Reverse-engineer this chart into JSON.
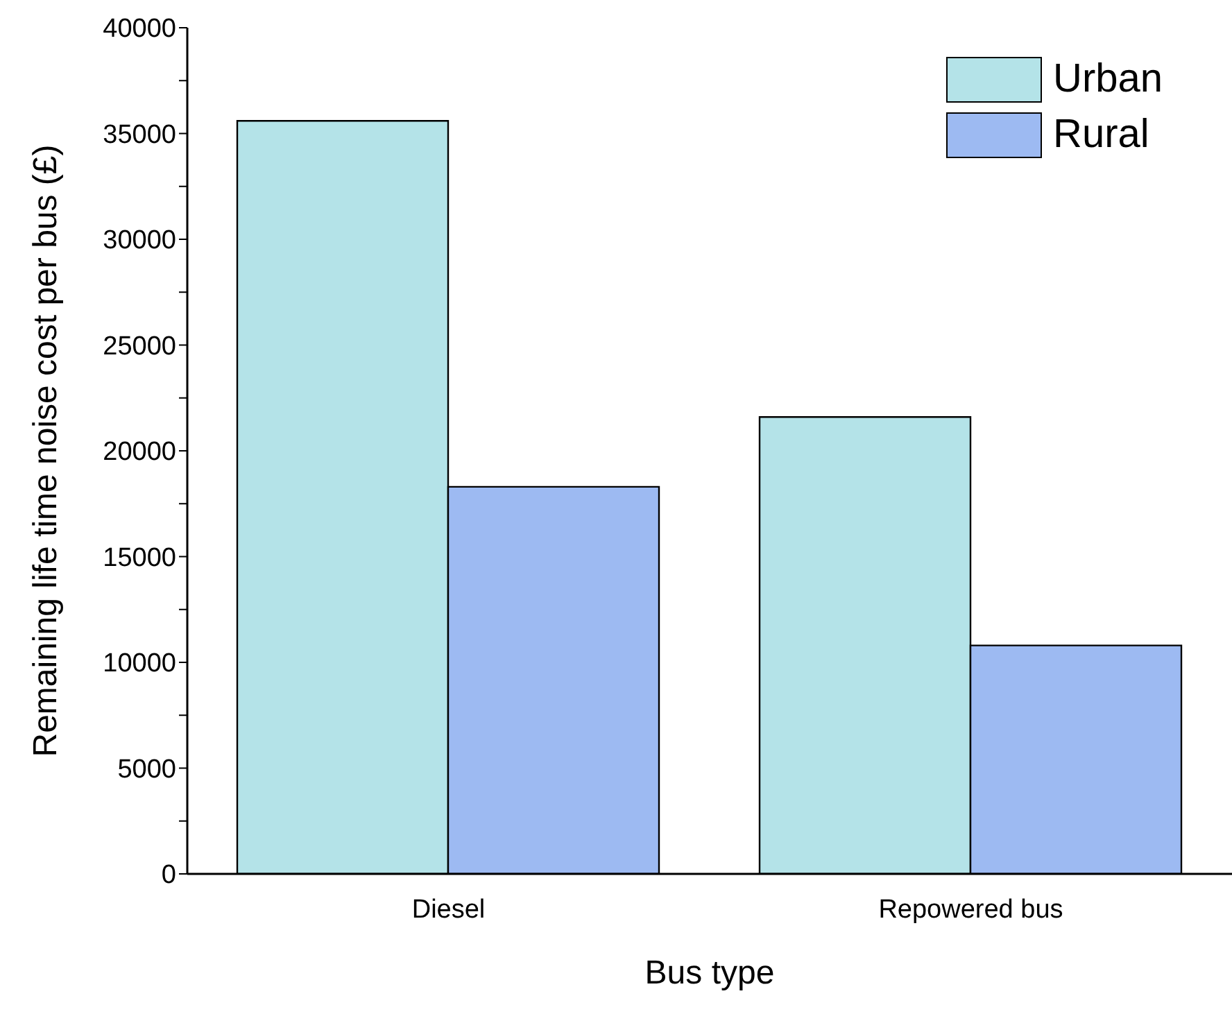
{
  "chart_data": {
    "type": "bar",
    "xlabel": "Bus type",
    "ylabel": "Remaining life time noise cost per bus (£)",
    "categories": [
      "Diesel",
      "Repowered bus"
    ],
    "series": [
      {
        "name": "Urban",
        "color": "#b4e3e8",
        "values": [
          35600,
          21600
        ]
      },
      {
        "name": "Rural",
        "color": "#9dbaf2",
        "values": [
          18300,
          10800
        ]
      }
    ],
    "ylim": [
      0,
      40000
    ],
    "yticks": [
      0,
      {
        "value": 2500,
        "label": null
      },
      5000,
      {
        "value": 7500,
        "label": null
      },
      10000,
      {
        "value": 12500,
        "label": null
      },
      15000,
      {
        "value": 17500,
        "label": null
      },
      20000,
      {
        "value": 22500,
        "label": null
      },
      25000,
      {
        "value": 27500,
        "label": null
      },
      30000,
      {
        "value": 32500,
        "label": null
      },
      35000,
      {
        "value": 37500,
        "label": null
      },
      40000
    ],
    "grid": false,
    "legend": "top right"
  }
}
